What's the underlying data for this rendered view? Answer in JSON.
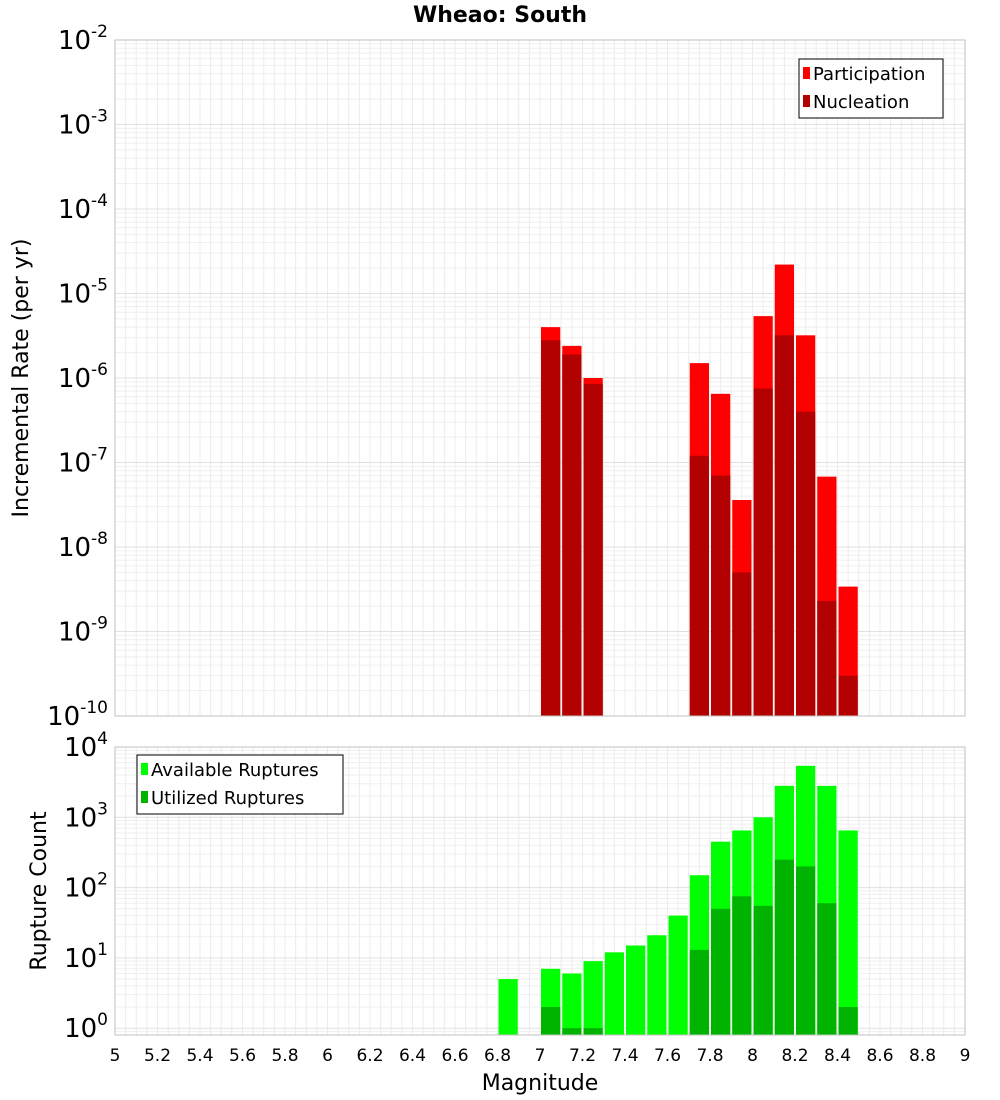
{
  "title": "Wheao: South",
  "xlabel": "Magnitude",
  "x_ticks": [
    "5",
    "5.2",
    "5.4",
    "5.6",
    "5.8",
    "6",
    "6.2",
    "6.4",
    "6.6",
    "6.8",
    "7",
    "7.2",
    "7.4",
    "7.6",
    "7.8",
    "8",
    "8.2",
    "8.4",
    "8.6",
    "8.8",
    "9"
  ],
  "chart_data": [
    {
      "type": "bar",
      "ylabel": "Incremental Rate (per yr)",
      "y_scale": "log",
      "ylim": [
        1e-10,
        0.01
      ],
      "xlim": [
        5,
        9
      ],
      "bin_width": 0.1,
      "grid": true,
      "legend_position": "top-right",
      "y_tick_exponents": [
        "-10",
        "-9",
        "-8",
        "-7",
        "-6",
        "-5",
        "-4",
        "-3",
        "-2"
      ],
      "series": [
        {
          "name": "Participation",
          "color": "#ff0000",
          "x": [
            7.05,
            7.15,
            7.25,
            7.75,
            7.85,
            7.95,
            8.05,
            8.15,
            8.25,
            8.35,
            8.45
          ],
          "values": [
            4e-06,
            2.4e-06,
            1e-06,
            1.5e-06,
            6.5e-07,
            3.6e-08,
            5.4e-06,
            2.2e-05,
            3.2e-06,
            6.8e-08,
            3.4e-09
          ]
        },
        {
          "name": "Nucleation",
          "color": "#b30000",
          "x": [
            7.05,
            7.15,
            7.25,
            7.75,
            7.85,
            7.95,
            8.05,
            8.15,
            8.25,
            8.35,
            8.45
          ],
          "values": [
            2.8e-06,
            1.9e-06,
            8.5e-07,
            1.2e-07,
            7e-08,
            5e-09,
            7.5e-07,
            3.2e-06,
            4e-07,
            2.3e-09,
            3e-10
          ]
        }
      ]
    },
    {
      "type": "bar",
      "ylabel": "Rupture Count",
      "y_scale": "log",
      "ylim": [
        0.8,
        10000
      ],
      "xlim": [
        5,
        9
      ],
      "bin_width": 0.1,
      "grid": true,
      "legend_position": "top-left",
      "y_tick_exponents": [
        "0",
        "1",
        "2",
        "3",
        "4"
      ],
      "series": [
        {
          "name": "Available Ruptures",
          "color": "#00ff00",
          "x": [
            6.85,
            7.05,
            7.15,
            7.25,
            7.35,
            7.45,
            7.55,
            7.65,
            7.75,
            7.85,
            7.95,
            8.05,
            8.15,
            8.25,
            8.35,
            8.45
          ],
          "values": [
            5,
            7,
            6,
            9,
            12,
            15,
            21,
            40,
            150,
            450,
            650,
            1000,
            2800,
            5400,
            2800,
            650
          ]
        },
        {
          "name": "Utilized Ruptures",
          "color": "#00b300",
          "x": [
            7.05,
            7.15,
            7.25,
            7.75,
            7.85,
            7.95,
            8.05,
            8.15,
            8.25,
            8.35,
            8.45
          ],
          "values": [
            2,
            1,
            1,
            13,
            50,
            75,
            55,
            250,
            200,
            60,
            2
          ]
        }
      ]
    }
  ]
}
